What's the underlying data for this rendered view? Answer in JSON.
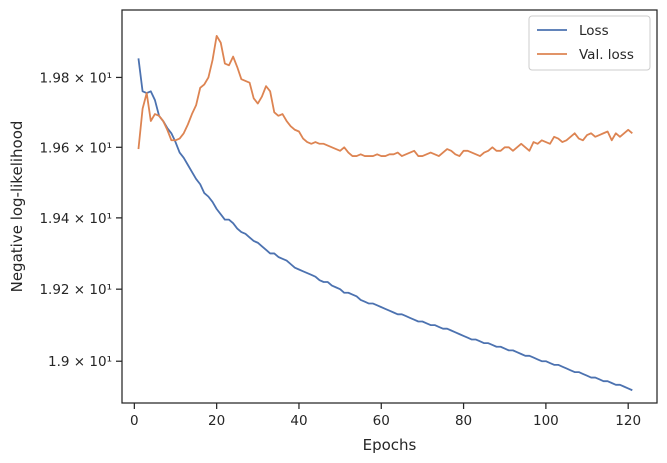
{
  "chart_data": {
    "type": "line",
    "xlabel": "Epochs",
    "ylabel": "Negative log-likelihood",
    "xlim": [
      -3,
      127
    ],
    "ylim": [
      18.885,
      19.995
    ],
    "yscale": "log",
    "x_ticks": [
      0,
      20,
      40,
      60,
      80,
      100,
      120
    ],
    "x_tick_labels": [
      "0",
      "20",
      "40",
      "60",
      "80",
      "100",
      "120"
    ],
    "y_ticks": [
      19.0,
      19.2,
      19.4,
      19.6,
      19.8
    ],
    "y_tick_labels": [
      "1.9 × 10¹",
      "1.92 × 10¹",
      "1.94 × 10¹",
      "1.96 × 10¹",
      "1.98 × 10¹"
    ],
    "grid": false,
    "legend_position": "top-right",
    "series": [
      {
        "name": "Loss",
        "color": "#4c72b0",
        "x": [
          1,
          2,
          3,
          4,
          5,
          6,
          7,
          8,
          9,
          10,
          11,
          12,
          13,
          14,
          15,
          16,
          17,
          18,
          19,
          20,
          21,
          22,
          23,
          24,
          25,
          26,
          27,
          28,
          29,
          30,
          31,
          32,
          33,
          34,
          35,
          36,
          37,
          38,
          39,
          40,
          41,
          42,
          43,
          44,
          45,
          46,
          47,
          48,
          49,
          50,
          51,
          52,
          53,
          54,
          55,
          56,
          57,
          58,
          59,
          60,
          61,
          62,
          63,
          64,
          65,
          66,
          67,
          68,
          69,
          70,
          71,
          72,
          73,
          74,
          75,
          76,
          77,
          78,
          79,
          80,
          81,
          82,
          83,
          84,
          85,
          86,
          87,
          88,
          89,
          90,
          91,
          92,
          93,
          94,
          95,
          96,
          97,
          98,
          99,
          100,
          101,
          102,
          103,
          104,
          105,
          106,
          107,
          108,
          109,
          110,
          111,
          112,
          113,
          114,
          115,
          116,
          117,
          118,
          119,
          120,
          121
        ],
        "values": [
          19.855,
          19.76,
          19.755,
          19.76,
          19.735,
          19.69,
          19.675,
          19.655,
          19.64,
          19.615,
          19.585,
          19.57,
          19.55,
          19.53,
          19.51,
          19.495,
          19.47,
          19.46,
          19.445,
          19.425,
          19.41,
          19.395,
          19.395,
          19.385,
          19.37,
          19.36,
          19.355,
          19.345,
          19.335,
          19.33,
          19.32,
          19.31,
          19.3,
          19.3,
          19.29,
          19.285,
          19.28,
          19.27,
          19.26,
          19.255,
          19.25,
          19.245,
          19.24,
          19.235,
          19.225,
          19.22,
          19.22,
          19.21,
          19.205,
          19.2,
          19.19,
          19.19,
          19.185,
          19.18,
          19.17,
          19.165,
          19.16,
          19.16,
          19.155,
          19.15,
          19.145,
          19.14,
          19.135,
          19.13,
          19.13,
          19.125,
          19.12,
          19.115,
          19.11,
          19.11,
          19.105,
          19.1,
          19.1,
          19.095,
          19.09,
          19.09,
          19.085,
          19.08,
          19.075,
          19.07,
          19.065,
          19.06,
          19.06,
          19.055,
          19.05,
          19.05,
          19.045,
          19.04,
          19.04,
          19.035,
          19.03,
          19.03,
          19.025,
          19.02,
          19.015,
          19.015,
          19.01,
          19.005,
          19.0,
          19.0,
          18.995,
          18.99,
          18.99,
          18.985,
          18.98,
          18.975,
          18.97,
          18.97,
          18.965,
          18.96,
          18.955,
          18.955,
          18.95,
          18.945,
          18.945,
          18.94,
          18.935,
          18.935,
          18.93,
          18.925,
          18.92
        ]
      },
      {
        "name": "Val. loss",
        "color": "#dd8452",
        "x": [
          1,
          2,
          3,
          4,
          5,
          6,
          7,
          8,
          9,
          10,
          11,
          12,
          13,
          14,
          15,
          16,
          17,
          18,
          19,
          20,
          21,
          22,
          23,
          24,
          25,
          26,
          27,
          28,
          29,
          30,
          31,
          32,
          33,
          34,
          35,
          36,
          37,
          38,
          39,
          40,
          41,
          42,
          43,
          44,
          45,
          46,
          47,
          48,
          49,
          50,
          51,
          52,
          53,
          54,
          55,
          56,
          57,
          58,
          59,
          60,
          61,
          62,
          63,
          64,
          65,
          66,
          67,
          68,
          69,
          70,
          71,
          72,
          73,
          74,
          75,
          76,
          77,
          78,
          79,
          80,
          81,
          82,
          83,
          84,
          85,
          86,
          87,
          88,
          89,
          90,
          91,
          92,
          93,
          94,
          95,
          96,
          97,
          98,
          99,
          100,
          101,
          102,
          103,
          104,
          105,
          106,
          107,
          108,
          109,
          110,
          111,
          112,
          113,
          114,
          115,
          116,
          117,
          118,
          119,
          120,
          121
        ],
        "values": [
          19.595,
          19.71,
          19.755,
          19.675,
          19.695,
          19.69,
          19.675,
          19.65,
          19.62,
          19.62,
          19.625,
          19.64,
          19.665,
          19.695,
          19.72,
          19.77,
          19.78,
          19.8,
          19.85,
          19.92,
          19.9,
          19.84,
          19.835,
          19.86,
          19.83,
          19.795,
          19.79,
          19.785,
          19.74,
          19.725,
          19.745,
          19.775,
          19.76,
          19.7,
          19.69,
          19.695,
          19.675,
          19.66,
          19.65,
          19.645,
          19.625,
          19.615,
          19.61,
          19.615,
          19.61,
          19.61,
          19.605,
          19.6,
          19.595,
          19.59,
          19.6,
          19.585,
          19.575,
          19.575,
          19.58,
          19.575,
          19.575,
          19.575,
          19.58,
          19.575,
          19.575,
          19.58,
          19.58,
          19.585,
          19.575,
          19.58,
          19.585,
          19.59,
          19.575,
          19.575,
          19.58,
          19.585,
          19.58,
          19.575,
          19.585,
          19.595,
          19.59,
          19.58,
          19.575,
          19.59,
          19.59,
          19.585,
          19.58,
          19.575,
          19.585,
          19.59,
          19.6,
          19.59,
          19.59,
          19.6,
          19.6,
          19.59,
          19.6,
          19.61,
          19.6,
          19.59,
          19.615,
          19.61,
          19.62,
          19.615,
          19.61,
          19.63,
          19.625,
          19.615,
          19.62,
          19.63,
          19.64,
          19.625,
          19.62,
          19.635,
          19.64,
          19.63,
          19.635,
          19.64,
          19.645,
          19.62,
          19.64,
          19.63,
          19.64,
          19.65,
          19.64
        ]
      }
    ]
  }
}
